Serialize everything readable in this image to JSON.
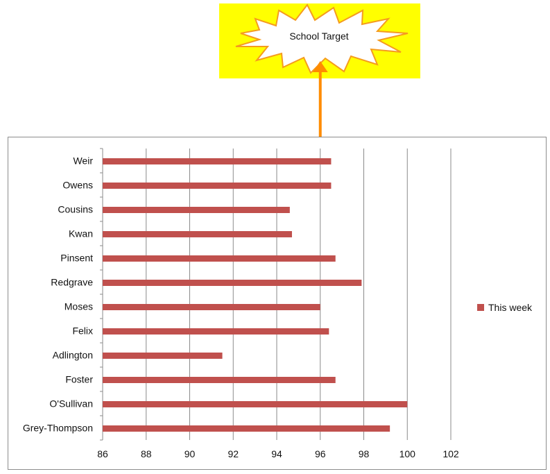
{
  "callout": {
    "text": "School Target",
    "background_color": "#ffff00",
    "burst_fill": "#ffffff",
    "burst_stroke": "#f59b1f",
    "arrow_color": "#ff8c00"
  },
  "chart_data": {
    "type": "bar",
    "orientation": "horizontal",
    "categories": [
      "Weir",
      "Owens",
      "Cousins",
      "Kwan",
      "Pinsent",
      "Redgrave",
      "Moses",
      "Felix",
      "Adlington",
      "Foster",
      "O'Sullivan",
      "Grey-Thompson"
    ],
    "series": [
      {
        "name": "This week",
        "color": "#c0504d",
        "values": [
          96.5,
          96.5,
          94.6,
          94.7,
          96.7,
          97.9,
          96.0,
          96.4,
          91.5,
          96.7,
          100.0,
          99.2
        ]
      }
    ],
    "xlim": [
      86,
      102
    ],
    "xticks": [
      "86",
      "88",
      "90",
      "92",
      "94",
      "96",
      "98",
      "100",
      "102"
    ],
    "target_value": 96,
    "grid": true,
    "legend_position": "right"
  }
}
